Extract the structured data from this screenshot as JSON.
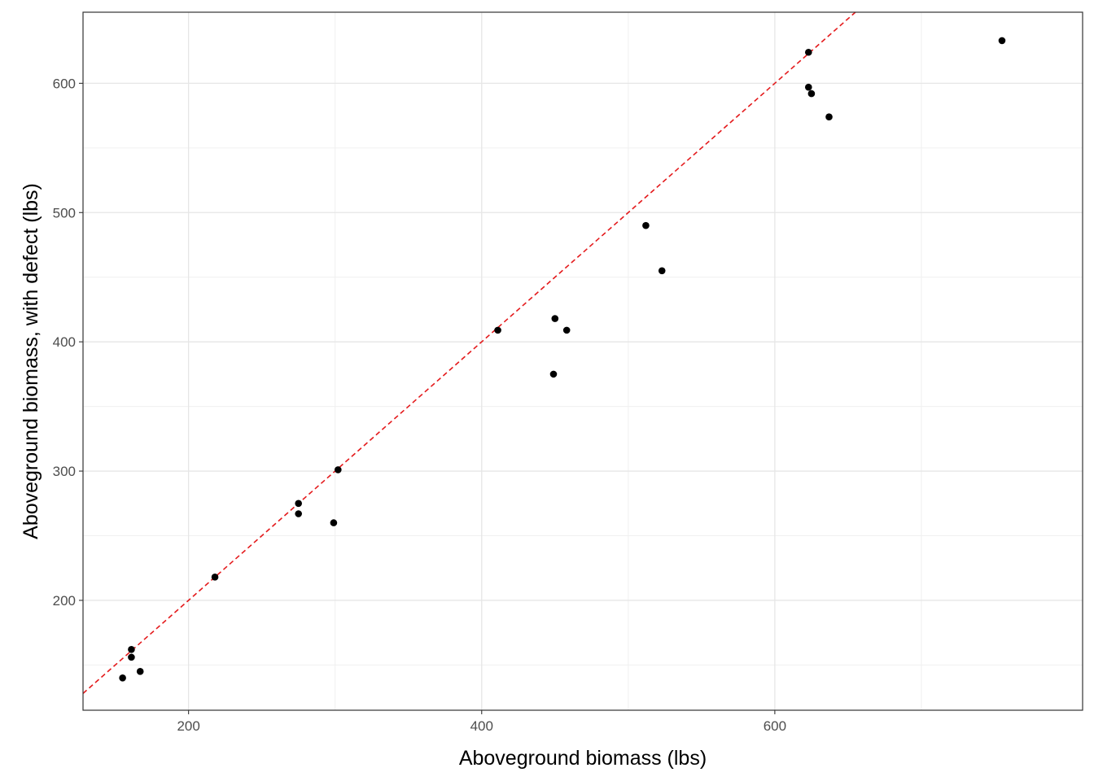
{
  "chart_data": {
    "type": "scatter",
    "title": "",
    "xlabel": "Aboveground biomass (lbs)",
    "ylabel": "Aboveground biomass, with defect (lbs)",
    "xlim": [
      128,
      810
    ],
    "ylim": [
      115,
      655
    ],
    "x_ticks": [
      200,
      400,
      600
    ],
    "y_ticks": [
      200,
      300,
      400,
      500,
      600
    ],
    "x_tick_labels": [
      "200",
      "400",
      "600"
    ],
    "y_tick_labels": [
      "200",
      "300",
      "400",
      "500",
      "600"
    ],
    "x_minor_gridlines": [
      300,
      500,
      700
    ],
    "y_minor_gridlines": [
      150,
      250,
      350,
      450,
      550
    ],
    "grid": true,
    "legend": "none",
    "reference_line": {
      "type": "y = x",
      "style": "dashed",
      "color": "#e41a1c"
    },
    "point_color": "#000000",
    "points": [
      {
        "x": 155,
        "y": 140
      },
      {
        "x": 161,
        "y": 156
      },
      {
        "x": 161,
        "y": 162
      },
      {
        "x": 167,
        "y": 145
      },
      {
        "x": 218,
        "y": 218
      },
      {
        "x": 275,
        "y": 267
      },
      {
        "x": 275,
        "y": 275
      },
      {
        "x": 299,
        "y": 260
      },
      {
        "x": 302,
        "y": 301
      },
      {
        "x": 411,
        "y": 409
      },
      {
        "x": 449,
        "y": 375
      },
      {
        "x": 450,
        "y": 418
      },
      {
        "x": 458,
        "y": 409
      },
      {
        "x": 512,
        "y": 490
      },
      {
        "x": 523,
        "y": 455
      },
      {
        "x": 623,
        "y": 597
      },
      {
        "x": 623,
        "y": 624
      },
      {
        "x": 625,
        "y": 592
      },
      {
        "x": 637,
        "y": 574
      },
      {
        "x": 755,
        "y": 633
      }
    ]
  }
}
